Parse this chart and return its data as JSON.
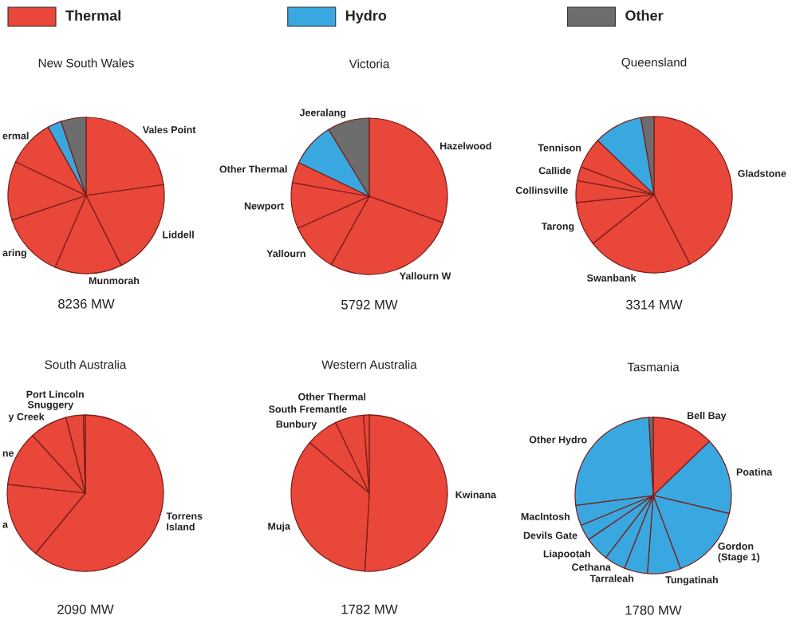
{
  "chart_data": [
    {
      "type": "other",
      "categories": [
        "Thermal",
        "Hydro",
        "Other"
      ],
      "colors": [
        "#e8473a",
        "#3aa8e0",
        "#6d6d6d"
      ]
    },
    {
      "type": "pie",
      "title": "New South Wales",
      "categories": [
        "Vales Point",
        "Liddell",
        "Munmorah",
        "aring",
        null,
        "ermal",
        null,
        null
      ],
      "values": [
        22.8,
        19.8,
        13.9,
        13.4,
        12.2,
        9.8,
        2.9,
        5.2
      ],
      "colors": [
        "#e8473a",
        "#e8473a",
        "#e8473a",
        "#e8473a",
        "#e8473a",
        "#e8473a",
        "#3aa8e0",
        "#6d6d6d"
      ],
      "annotations": [
        "8236 MW"
      ]
    },
    {
      "type": "pie",
      "title": "Victoria",
      "categories": [
        "Hazelwood",
        "Yallourn W",
        "Yallourn",
        "Newport",
        "Other Thermal",
        null,
        "Jeeralang"
      ],
      "values": [
        30.5,
        27.6,
        10.2,
        9.5,
        4.3,
        9.2,
        8.7
      ],
      "colors": [
        "#e8473a",
        "#e8473a",
        "#e8473a",
        "#e8473a",
        "#e8473a",
        "#3aa8e0",
        "#6d6d6d"
      ],
      "annotations": [
        "5792 MW"
      ]
    },
    {
      "type": "pie",
      "title": "Queensland",
      "categories": [
        "Gladstone",
        "Swanbank",
        "Tarong",
        "Collinsville",
        "Callide",
        "Tennison",
        null,
        null
      ],
      "values": [
        42.4,
        21.9,
        9.1,
        4.5,
        2.9,
        6.4,
        10.1,
        2.7
      ],
      "colors": [
        "#e8473a",
        "#e8473a",
        "#e8473a",
        "#e8473a",
        "#e8473a",
        "#e8473a",
        "#3aa8e0",
        "#6d6d6d"
      ],
      "annotations": [
        "3314 MW"
      ]
    },
    {
      "type": "pie",
      "title": "South Australia",
      "categories": [
        "Torrens\nIsland",
        "a",
        "ne",
        "y Creek",
        "Snuggery",
        "Port Lincoln"
      ],
      "values": [
        61.0,
        15.8,
        11.4,
        7.8,
        3.6,
        0.4
      ],
      "colors": [
        "#e8473a",
        "#e8473a",
        "#e8473a",
        "#e8473a",
        "#e8473a",
        "#e8473a"
      ],
      "annotations": [
        "2090 MW"
      ]
    },
    {
      "type": "pie",
      "title": "Western Australia",
      "categories": [
        "Kwinana",
        "Muja",
        "Bunbury",
        "South Fremantle",
        "Other Thermal"
      ],
      "values": [
        50.9,
        35.3,
        6.7,
        5.9,
        1.2
      ],
      "colors": [
        "#e8473a",
        "#e8473a",
        "#e8473a",
        "#e8473a",
        "#e8473a"
      ],
      "annotations": [
        "1782 MW"
      ]
    },
    {
      "type": "pie",
      "title": "Tasmania",
      "categories": [
        "Bell Bay",
        "Poatina",
        "Gordon\n(Stage 1)",
        "Tungatinah",
        "Tarraleah",
        "Cethana",
        "Liapootah",
        "Devils Gate",
        "MacIntosh",
        "Other Hydro",
        null
      ],
      "values": [
        12.8,
        15.9,
        15.6,
        6.9,
        4.8,
        4.4,
        5.1,
        3.3,
        4.2,
        26.1,
        0.9
      ],
      "colors": [
        "#e8473a",
        "#3aa8e0",
        "#3aa8e0",
        "#3aa8e0",
        "#3aa8e0",
        "#3aa8e0",
        "#3aa8e0",
        "#3aa8e0",
        "#3aa8e0",
        "#3aa8e0",
        "#6d6d6d"
      ],
      "annotations": [
        "1780 MW"
      ]
    }
  ]
}
